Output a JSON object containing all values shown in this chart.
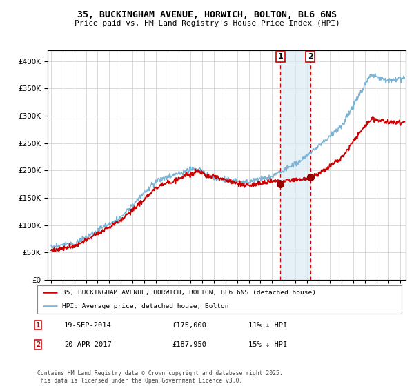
{
  "title_line1": "35, BUCKINGHAM AVENUE, HORWICH, BOLTON, BL6 6NS",
  "title_line2": "Price paid vs. HM Land Registry's House Price Index (HPI)",
  "ylabel_ticks": [
    0,
    50000,
    100000,
    150000,
    200000,
    250000,
    300000,
    350000,
    400000
  ],
  "ylim": [
    0,
    420000
  ],
  "xlim_start": 1994.7,
  "xlim_end": 2025.5,
  "sale1_date": "19-SEP-2014",
  "sale1_price": 175000,
  "sale1_pct": "11% ↓ HPI",
  "sale1_x": 2014.72,
  "sale2_date": "20-APR-2017",
  "sale2_price": 187950,
  "sale2_pct": "15% ↓ HPI",
  "sale2_x": 2017.3,
  "hpi_color": "#7ab3d4",
  "price_color": "#cc0000",
  "sale_marker_color": "#990000",
  "shaded_region_color": "#daeaf4",
  "legend_label1": "35, BUCKINGHAM AVENUE, HORWICH, BOLTON, BL6 6NS (detached house)",
  "legend_label2": "HPI: Average price, detached house, Bolton",
  "footer": "Contains HM Land Registry data © Crown copyright and database right 2025.\nThis data is licensed under the Open Government Licence v3.0.",
  "background_color": "#ffffff",
  "grid_color": "#cccccc"
}
